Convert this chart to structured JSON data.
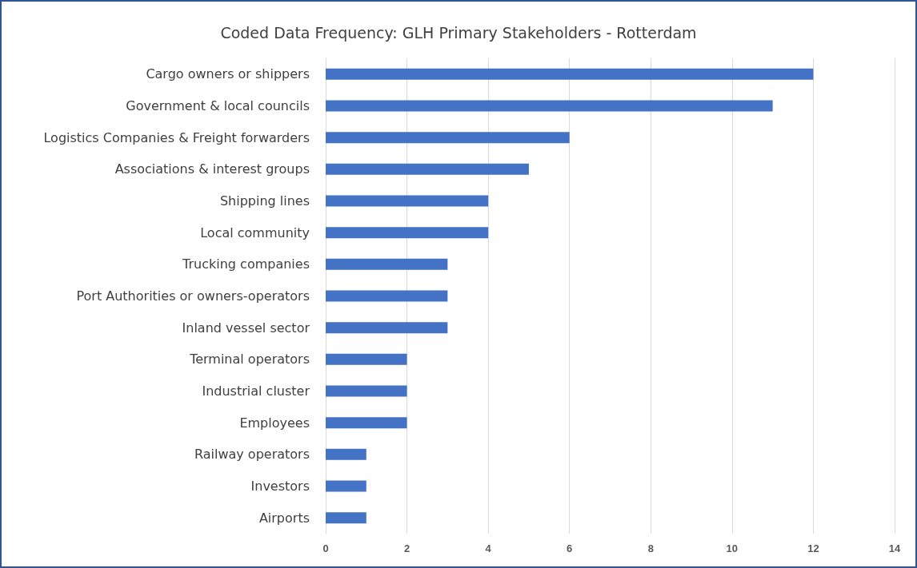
{
  "chart_data": {
    "type": "bar",
    "orientation": "horizontal",
    "title": "Coded Data Frequency: GLH Primary Stakeholders - Rotterdam",
    "categories": [
      "Cargo owners or shippers",
      "Government & local councils",
      "Logistics Companies & Freight forwarders",
      "Associations & interest groups",
      "Shipping lines",
      "Local community",
      "Trucking companies",
      "Port Authorities or owners-operators",
      "Inland vessel sector",
      "Terminal operators",
      "Industrial cluster",
      "Employees",
      "Railway operators",
      "Investors",
      "Airports"
    ],
    "values": [
      12,
      11,
      6,
      5,
      4,
      4,
      3,
      3,
      3,
      2,
      2,
      2,
      1,
      1,
      1
    ],
    "color": "#4472c4",
    "xlim": [
      0,
      14
    ],
    "xticks": [
      0,
      2,
      4,
      6,
      8,
      10,
      12,
      14
    ],
    "grid": "x"
  }
}
